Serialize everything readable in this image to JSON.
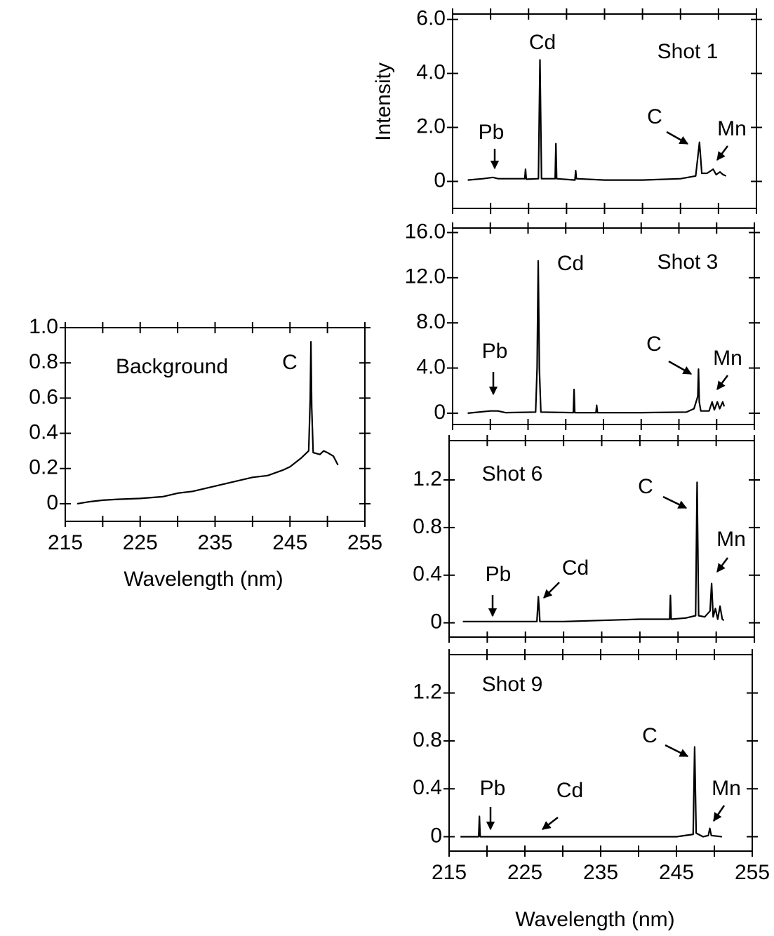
{
  "chart_data": [
    {
      "type": "line",
      "title": "Background",
      "xlabel": "Wavelength (nm)",
      "color": "#000000",
      "x": [
        216.6,
        218,
        220,
        222,
        225,
        228,
        230,
        232,
        235,
        238,
        240,
        242,
        244,
        245,
        246.5,
        247.5,
        247.7,
        247.8,
        247.9,
        248.1,
        249,
        249.5,
        250,
        250.8,
        251.4
      ],
      "values": [
        0,
        0.01,
        0.02,
        0.025,
        0.03,
        0.04,
        0.06,
        0.07,
        0.1,
        0.13,
        0.15,
        0.16,
        0.19,
        0.21,
        0.26,
        0.3,
        0.6,
        0.92,
        0.55,
        0.29,
        0.28,
        0.3,
        0.29,
        0.27,
        0.22
      ],
      "xlim": [
        215,
        255
      ],
      "ylim": [
        -0.1,
        1.0
      ],
      "xticks": [
        215,
        225,
        235,
        245,
        255
      ],
      "xminorticks": [
        220,
        230,
        240,
        250
      ],
      "xtick_labels": true,
      "yticks": [
        0,
        0.2,
        0.4,
        0.6,
        0.8,
        {
          "value": 1,
          "label": "1.0"
        }
      ],
      "annotations": [
        "C"
      ]
    },
    {
      "type": "line",
      "title": "Shot 1",
      "ylabel": "Intensity",
      "color": "#000000",
      "x": [
        217,
        219,
        220.3,
        221,
        224.5,
        224.6,
        224.7,
        226.3,
        226.5,
        226.7,
        228.5,
        228.6,
        228.7,
        231.1,
        231.2,
        231.3,
        235,
        240,
        245,
        247,
        247.5,
        247.8,
        248.5,
        249.3,
        249.7,
        250.2,
        250.6,
        251
      ],
      "values": [
        0.05,
        0.1,
        0.15,
        0.1,
        0.1,
        0.45,
        0.08,
        0.1,
        4.5,
        0.1,
        0.1,
        1.4,
        0.1,
        0.05,
        0.4,
        0.1,
        0.05,
        0.05,
        0.1,
        0.2,
        1.45,
        0.3,
        0.3,
        0.45,
        0.25,
        0.35,
        0.25,
        0.2
      ],
      "xlim": [
        215,
        255
      ],
      "ylim": [
        -1,
        6.2
      ],
      "xticks": [
        215,
        225,
        235,
        245,
        255
      ],
      "xminorticks": [
        220,
        230,
        240,
        250
      ],
      "xtick_labels": false,
      "yticks": [
        0,
        {
          "value": 2,
          "label": "2.0"
        },
        {
          "value": 4,
          "label": "4.0"
        },
        {
          "value": 6,
          "label": "6.0"
        }
      ],
      "annotations": [
        "Pb",
        "Cd",
        "C",
        "Mn"
      ]
    },
    {
      "type": "line",
      "title": "Shot 3",
      "color": "#000000",
      "x": [
        217,
        220,
        221,
        222,
        226,
        226.2,
        226.35,
        226.5,
        226.7,
        231,
        231.1,
        231.2,
        234,
        234.1,
        234.2,
        240,
        246,
        247,
        247.5,
        247.6,
        247.7,
        247.9,
        249,
        249.4,
        249.7,
        250.1,
        250.4,
        250.8,
        251
      ],
      "values": [
        0,
        0.2,
        0.2,
        0.05,
        0.1,
        4,
        13.5,
        4,
        0.1,
        0.05,
        2.1,
        0.05,
        0.05,
        0.7,
        0.05,
        0.05,
        0.1,
        0.4,
        1.5,
        3.9,
        1.0,
        0.2,
        0.2,
        1.0,
        0.3,
        1.0,
        0.4,
        1.0,
        0.6
      ],
      "xlim": [
        215,
        255
      ],
      "ylim": [
        -1,
        16.4
      ],
      "xticks": [
        215,
        225,
        235,
        245,
        255
      ],
      "xminorticks": [
        220,
        230,
        240,
        250
      ],
      "xtick_labels": false,
      "yticks": [
        0,
        {
          "value": 4,
          "label": "4.0"
        },
        {
          "value": 8,
          "label": "8.0"
        },
        {
          "value": 12,
          "label": "12.0"
        },
        {
          "value": 16,
          "label": "16.0"
        }
      ],
      "annotations": [
        "Cd",
        "Pb",
        "C",
        "Mn"
      ]
    },
    {
      "type": "line",
      "title": "Shot 6",
      "color": "#000000",
      "x": [
        216.8,
        220,
        224,
        226.5,
        226.7,
        226.9,
        230,
        235,
        240,
        243.9,
        244,
        244.1,
        246,
        247.3,
        247.5,
        247.7,
        248.5,
        249.2,
        249.4,
        249.6,
        249.9,
        250.2,
        250.5,
        250.8,
        251
      ],
      "values": [
        0.01,
        0.01,
        0.01,
        0.01,
        0.22,
        0.01,
        0.01,
        0.02,
        0.03,
        0.03,
        0.23,
        0.03,
        0.04,
        0.06,
        1.18,
        0.06,
        0.05,
        0.1,
        0.33,
        0.05,
        0.12,
        0.03,
        0.14,
        0.03,
        0.02
      ],
      "xlim": [
        215,
        255
      ],
      "ylim": [
        -0.12,
        1.53
      ],
      "xticks": [
        215,
        225,
        235,
        245,
        255
      ],
      "xminorticks": [
        220,
        230,
        240,
        250
      ],
      "xtick_labels": false,
      "yticks": [
        0,
        0.4,
        0.8,
        1.2
      ],
      "annotations": [
        "C",
        "Mn",
        "Pb",
        "Cd"
      ]
    },
    {
      "type": "line",
      "title": "Shot 9",
      "xlabel": "Wavelength (nm)",
      "color": "#000000",
      "x": [
        216.5,
        218.9,
        219,
        219.1,
        225,
        235,
        245,
        247.2,
        247.4,
        247.6,
        248.5,
        249.2,
        249.4,
        249.6,
        251
      ],
      "values": [
        0,
        0,
        0.17,
        0,
        0,
        0,
        0,
        0.02,
        0.75,
        0.03,
        0,
        0.01,
        0.07,
        0.01,
        0
      ],
      "xlim": [
        215,
        255
      ],
      "ylim": [
        -0.12,
        1.52
      ],
      "xticks": [
        215,
        225,
        235,
        245,
        255
      ],
      "xminorticks": [
        220,
        230,
        240,
        250
      ],
      "xtick_labels": true,
      "yticks": [
        0,
        0.4,
        0.8,
        1.2
      ],
      "annotations": [
        "C",
        "Pb",
        "Cd",
        "Mn"
      ]
    }
  ]
}
